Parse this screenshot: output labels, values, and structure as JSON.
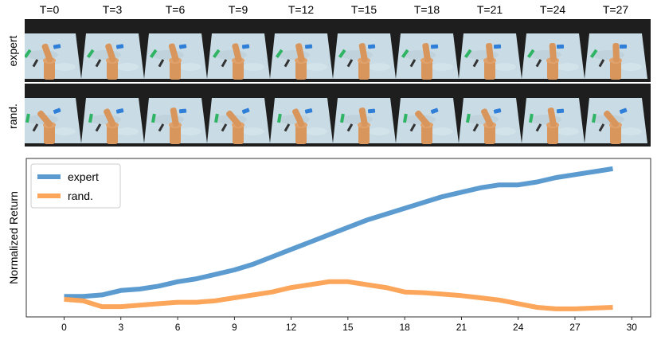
{
  "frames": {
    "labels": [
      "T=0",
      "T=3",
      "T=6",
      "T=9",
      "T=12",
      "T=15",
      "T=18",
      "T=21",
      "T=24",
      "T=27"
    ],
    "row_labels": [
      "expert",
      "rand."
    ]
  },
  "colors": {
    "expert": "#5b9bd0",
    "rand": "#fba65a",
    "floor": "#c9dbe4",
    "robot": "#d8955c",
    "strip_bg": "#1e1e1e"
  },
  "chart_data": {
    "type": "line",
    "ylabel": "Normalized Return",
    "xlabel": "",
    "xlim": [
      -2,
      31
    ],
    "ylim": [
      -0.04,
      1.04
    ],
    "xticks": [
      0,
      3,
      6,
      9,
      12,
      15,
      18,
      21,
      24,
      27,
      30
    ],
    "legend": "top-left",
    "grid": false,
    "x": [
      0,
      1,
      2,
      3,
      4,
      5,
      6,
      7,
      8,
      9,
      10,
      11,
      12,
      13,
      14,
      15,
      16,
      17,
      18,
      19,
      20,
      21,
      22,
      23,
      24,
      25,
      26,
      27,
      28,
      29
    ],
    "series": [
      {
        "name": "expert",
        "values": [
          0.1,
          0.1,
          0.11,
          0.14,
          0.15,
          0.17,
          0.2,
          0.22,
          0.25,
          0.28,
          0.32,
          0.37,
          0.42,
          0.47,
          0.52,
          0.57,
          0.62,
          0.66,
          0.7,
          0.74,
          0.78,
          0.81,
          0.84,
          0.86,
          0.86,
          0.88,
          0.91,
          0.93,
          0.95,
          0.97
        ]
      },
      {
        "name": "rand.",
        "values": [
          0.08,
          0.07,
          0.03,
          0.03,
          0.04,
          0.05,
          0.06,
          0.06,
          0.07,
          0.09,
          0.11,
          0.13,
          0.16,
          0.18,
          0.2,
          0.2,
          0.18,
          0.16,
          0.13,
          0.125,
          0.115,
          0.105,
          0.09,
          0.075,
          0.05,
          0.025,
          0.015,
          0.015,
          0.02,
          0.025
        ]
      }
    ]
  }
}
